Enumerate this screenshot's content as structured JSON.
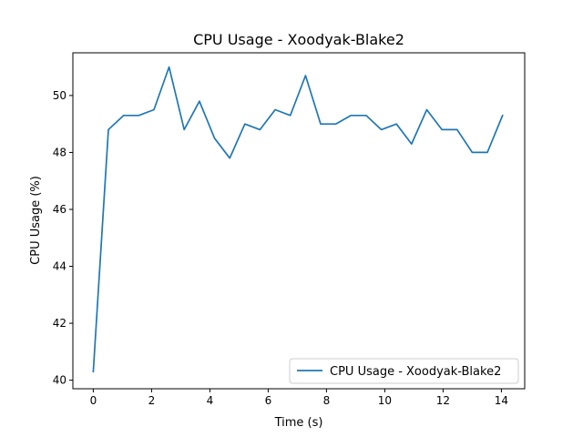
{
  "chart_data": {
    "type": "line",
    "title": "CPU Usage - Xoodyak-Blake2",
    "xlabel": "Time (s)",
    "ylabel": "CPU Usage (%)",
    "xlim": [
      -0.7,
      14.8
    ],
    "ylim": [
      39.7,
      51.5
    ],
    "xticks": [
      0,
      2,
      4,
      6,
      8,
      10,
      12,
      14
    ],
    "yticks": [
      40,
      42,
      44,
      46,
      48,
      50
    ],
    "grid": false,
    "legend_position": "lower right",
    "series_color": "#1f77b4",
    "series": [
      {
        "name": "CPU Usage - Xoodyak-Blake2",
        "x": [
          0.0,
          0.52,
          1.04,
          1.56,
          2.08,
          2.6,
          3.12,
          3.64,
          4.16,
          4.68,
          5.2,
          5.72,
          6.24,
          6.76,
          7.28,
          7.8,
          8.32,
          8.84,
          9.36,
          9.88,
          10.4,
          10.92,
          11.44,
          11.96,
          12.48,
          13.0,
          13.52,
          14.04
        ],
        "y": [
          40.3,
          48.8,
          49.3,
          49.3,
          49.5,
          51.0,
          48.8,
          49.8,
          48.5,
          47.8,
          49.0,
          48.8,
          49.5,
          49.3,
          50.7,
          49.0,
          49.0,
          49.3,
          49.3,
          48.8,
          49.0,
          48.3,
          49.5,
          48.8,
          48.8,
          48.0,
          48.0,
          49.3
        ]
      }
    ]
  }
}
